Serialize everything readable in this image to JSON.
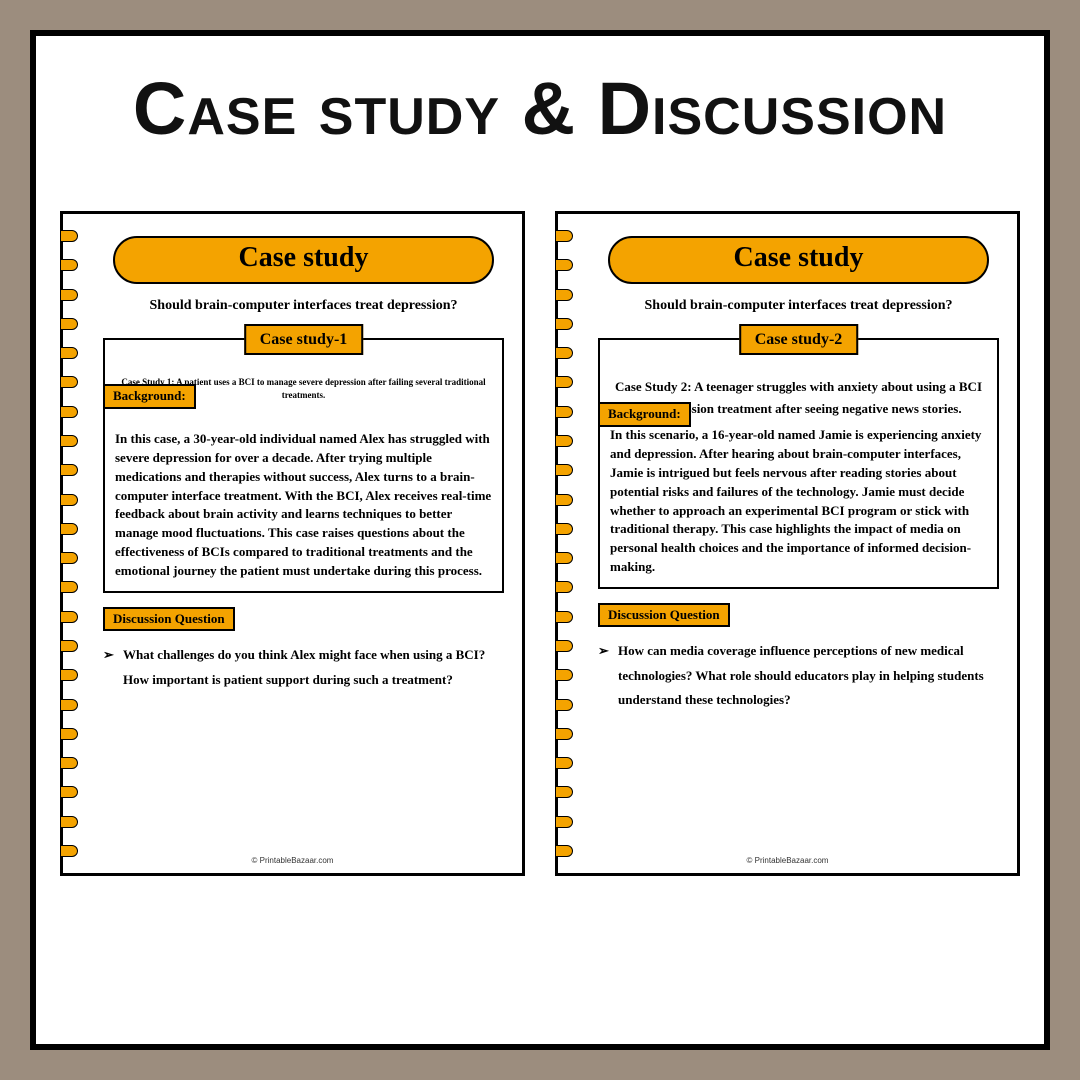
{
  "title": "Case study & Discussion",
  "subtitle": "Should brain-computer interfaces treat depression?",
  "pill_header": "Case study",
  "background_label": "Background:",
  "discussion_label": "Discussion Question",
  "footer": "© PrintableBazaar.com",
  "colors": {
    "frame_bg": "#9c8d7e",
    "page_bg": "#ffffff",
    "border": "#000000",
    "accent": "#f4a300",
    "title_text": "#111111"
  },
  "pages": [
    {
      "case_label": "Case study-1",
      "intro": "Case Study 1: A patient uses a BCI to manage severe depression after failing several traditional treatments.",
      "body": "In this case, a 30-year-old individual named Alex has struggled with severe depression for over a decade. After trying multiple medications and therapies without success, Alex turns to a brain-computer interface treatment. With the BCI, Alex receives real-time feedback about brain activity and learns techniques to better manage mood fluctuations. This case raises questions about the effectiveness of BCIs compared to traditional treatments and the emotional journey the patient must undertake during this process.",
      "question": "What challenges do you think Alex might face when using a BCI? How important is patient support during such a treatment?"
    },
    {
      "case_label": "Case study-2",
      "intro": "Case Study 2: A teenager struggles with anxiety about using a BCI for depression treatment after seeing negative news stories.",
      "body": "In this scenario, a 16-year-old named Jamie is experiencing anxiety and depression. After hearing about brain-computer interfaces, Jamie is intrigued but feels nervous after reading stories about potential risks and failures of the technology. Jamie must decide whether to approach an experimental BCI program or stick with traditional therapy. This case highlights the impact of media on personal health choices and the importance of informed decision-making.",
      "question": "How can media coverage influence perceptions of new medical technologies? What role should educators play in helping students understand these technologies?"
    }
  ]
}
